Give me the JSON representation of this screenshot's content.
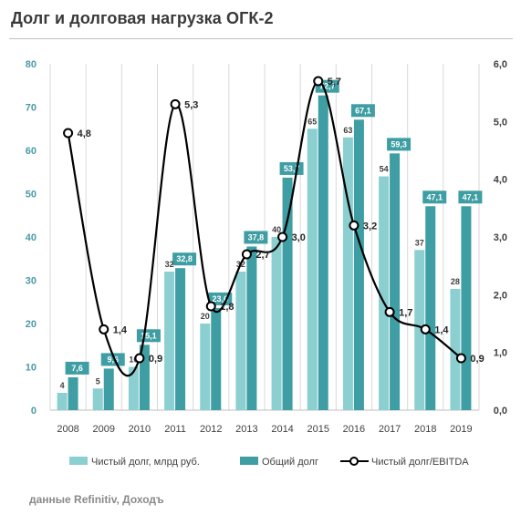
{
  "header": {
    "title": "Долг и долговая нагрузка ОГК-2"
  },
  "footer": {
    "source": "данные Refinitiv, Доходъ"
  },
  "colors": {
    "net_debt": "#8ccfd0",
    "total_debt": "#3e9ea3",
    "ratio_line": "#000000",
    "axis_left_text": "#4a9aa6",
    "grid": "#d9d9d9"
  },
  "chart_data": {
    "type": "bar",
    "title": "Долг и долговая нагрузка ОГК-2",
    "categories": [
      "2008",
      "2009",
      "2010",
      "2011",
      "2012",
      "2013",
      "2014",
      "2015",
      "2016",
      "2017",
      "2018",
      "2019"
    ],
    "series": [
      {
        "name": "Чистый долг, млрд руб.",
        "type": "bar",
        "axis": "left",
        "values": [
          4,
          5,
          10,
          32,
          20,
          32,
          40,
          65,
          63,
          54,
          37,
          28
        ],
        "labels": [
          "4",
          "5",
          "10",
          "32",
          "20",
          "32",
          "40",
          "65",
          "63",
          "54",
          "37",
          "28"
        ]
      },
      {
        "name": "Общий долг",
        "type": "bar",
        "axis": "left",
        "values": [
          7.6,
          9.6,
          15.1,
          32.8,
          23.6,
          37.8,
          53.7,
          72.7,
          67.1,
          59.3,
          47.1,
          47.1
        ],
        "labels": [
          "7,6",
          "9,6",
          "15,1",
          "32,8",
          "23,6",
          "37,8",
          "53,7",
          "72,7",
          "67,1",
          "59,3",
          "47,1",
          "47,1"
        ]
      },
      {
        "name": "Чистый долг/EBITDA",
        "type": "line",
        "axis": "right",
        "values": [
          4.8,
          1.4,
          0.9,
          5.3,
          1.8,
          2.7,
          3.0,
          5.7,
          3.2,
          1.7,
          1.4,
          0.9
        ],
        "labels": [
          "4,8",
          "1,4",
          "0,9",
          "5,3",
          "1,8",
          "2,7",
          "3,0",
          "5,7",
          "3,2",
          "1,7",
          "1,4",
          "0,9"
        ]
      }
    ],
    "y_left": {
      "range": [
        0,
        80
      ],
      "ticks": [
        0,
        10,
        20,
        30,
        40,
        50,
        60,
        70,
        80
      ],
      "tick_labels": [
        "0",
        "10",
        "20",
        "30",
        "40",
        "50",
        "60",
        "70",
        "80"
      ]
    },
    "y_right": {
      "range": [
        0,
        6
      ],
      "ticks": [
        0,
        1,
        2,
        3,
        4,
        5,
        6
      ],
      "tick_labels": [
        "0,0",
        "1,0",
        "2,0",
        "3,0",
        "4,0",
        "5,0",
        "6,0"
      ]
    },
    "grid": "vertical",
    "legend": "bottom"
  }
}
